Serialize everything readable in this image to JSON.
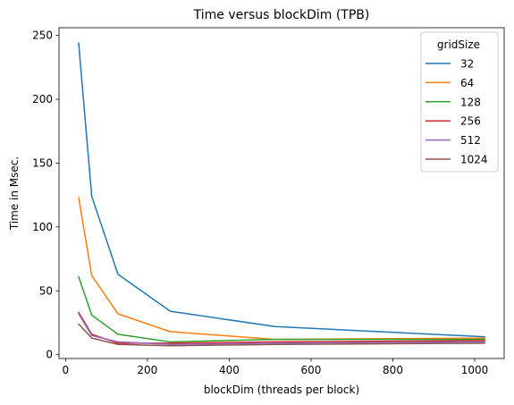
{
  "chart_data": {
    "type": "line",
    "title": "Time versus blockDim (TPB)",
    "xlabel": "blockDim (threads per block)",
    "ylabel": "Time in Msec.",
    "x": [
      32,
      64,
      128,
      256,
      512,
      1024
    ],
    "xlim": [
      -16,
      1072
    ],
    "ylim": [
      -3,
      256
    ],
    "xticks": [
      0,
      200,
      400,
      600,
      800,
      1000
    ],
    "yticks": [
      0,
      50,
      100,
      150,
      200,
      250
    ],
    "grid": false,
    "legend": {
      "title": "gridSize",
      "placement": "top-right"
    },
    "series": [
      {
        "name": "32",
        "color": "#1f77b4",
        "values": [
          244,
          124,
          63,
          34,
          22,
          14
        ]
      },
      {
        "name": "64",
        "color": "#ff7f0e",
        "values": [
          123,
          62,
          32,
          18,
          12,
          13
        ]
      },
      {
        "name": "128",
        "color": "#2ca02c",
        "values": [
          61,
          31,
          16,
          10,
          12,
          12
        ]
      },
      {
        "name": "256",
        "color": "#d62728",
        "values": [
          33,
          16,
          9,
          9,
          10,
          11
        ]
      },
      {
        "name": "512",
        "color": "#9467bd",
        "values": [
          32,
          15,
          10,
          8,
          9,
          10
        ]
      },
      {
        "name": "1024",
        "color": "#8c564b",
        "values": [
          24,
          13,
          8,
          7,
          8,
          9
        ]
      }
    ]
  }
}
